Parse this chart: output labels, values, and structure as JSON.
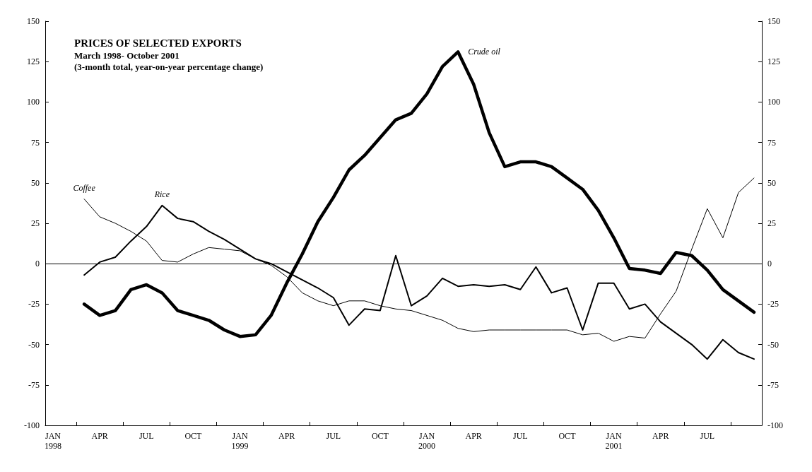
{
  "chart_data": {
    "type": "line",
    "title": "PRICES OF SELECTED EXPORTS",
    "subtitle": "March 1998- October 2001\n(3-month total, year-on-year percentage change)",
    "categories": [
      "JAN\n1998",
      null,
      null,
      "APR",
      null,
      null,
      "JUL",
      null,
      null,
      "OCT",
      null,
      null,
      "JAN\n1999",
      null,
      null,
      "APR",
      null,
      null,
      "JUL",
      null,
      null,
      "OCT",
      null,
      null,
      "JAN\n2000",
      null,
      null,
      "APR",
      null,
      null,
      "JUL",
      null,
      null,
      "OCT",
      null,
      null,
      "JAN\n2001",
      null,
      null,
      "APR",
      null,
      null,
      "JUL",
      null,
      null,
      null
    ],
    "series": [
      {
        "name": "Coffee",
        "color": "#000000",
        "values": [
          null,
          null,
          40,
          29,
          25,
          20,
          14,
          2,
          1,
          6,
          10,
          9,
          8,
          3,
          -1,
          -8,
          -18,
          -23,
          -26,
          -23,
          -23,
          -26,
          -28,
          -29,
          -32,
          -35,
          -40,
          -42,
          -41,
          -41,
          -41,
          -41,
          -41,
          -41,
          -44,
          -43,
          -48,
          -45,
          -46,
          -31,
          -17,
          9,
          34,
          16,
          44,
          53
        ]
      },
      {
        "name": "Rice",
        "color": "#000000",
        "values": [
          null,
          null,
          -7,
          1,
          4,
          14,
          23,
          36,
          28,
          26,
          20,
          15,
          9,
          3,
          0,
          -5,
          -10,
          -15,
          -21,
          -38,
          -28,
          -29,
          5,
          -26,
          -20,
          -9,
          -14,
          -13,
          -14,
          -13,
          -16,
          -2,
          -18,
          -15,
          -41,
          -12,
          -12,
          -28,
          -25,
          -36,
          -43,
          -50,
          -59,
          -47,
          -55,
          -59
        ]
      },
      {
        "name": "Crude oil",
        "color": "#000000",
        "values": [
          null,
          null,
          -25,
          -32,
          -29,
          -16,
          -13,
          -18,
          -29,
          -32,
          -35,
          -41,
          -45,
          -44,
          -32,
          -12,
          6,
          26,
          41,
          58,
          67,
          78,
          89,
          93,
          105,
          122,
          131,
          111,
          81,
          60,
          63,
          63,
          60,
          53,
          46,
          33,
          16,
          -3,
          -4,
          -6,
          7,
          5,
          -4,
          -16,
          -23,
          -30
        ]
      }
    ],
    "ylim": [
      -100,
      150
    ],
    "yticks": [
      -100,
      -75,
      -50,
      -25,
      0,
      25,
      50,
      75,
      100,
      125,
      150
    ],
    "y2lim": [
      -100,
      150
    ],
    "y2ticks": [
      -100,
      -75,
      -50,
      -25,
      0,
      25,
      50,
      75,
      100,
      125,
      150
    ],
    "ref_lines": [
      {
        "axis": "y",
        "value": 0,
        "color": "#000000"
      }
    ],
    "grid": false,
    "legend": false,
    "marker": "none",
    "line_style": "solid"
  }
}
